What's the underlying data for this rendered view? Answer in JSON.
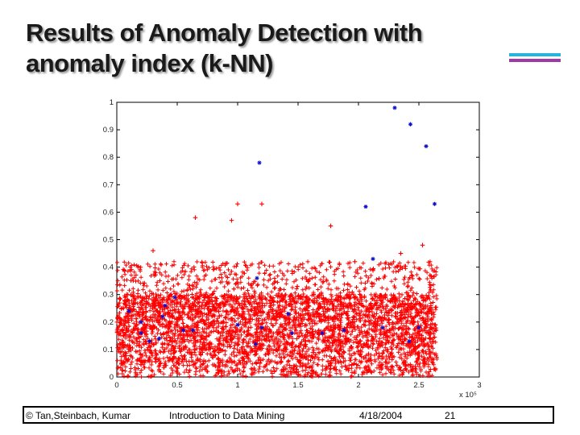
{
  "slide": {
    "title_line1": "Results of Anomaly Detection with",
    "title_line2": "anomaly index (k-NN)",
    "accent_colors": [
      "#2ab3d8",
      "#a13aa8"
    ]
  },
  "footer": {
    "copyright": "© Tan,Steinbach, Kumar",
    "course": "Introduction to Data Mining",
    "date": "4/18/2004",
    "page": "21"
  },
  "chart_data": {
    "type": "scatter",
    "xlim": [
      0,
      3
    ],
    "ylim": [
      0,
      1
    ],
    "x_ticks": [
      "0",
      "0.5",
      "1",
      "1.5",
      "2",
      "2.5",
      "3"
    ],
    "y_ticks": [
      "0",
      "0.1",
      "0.2",
      "0.3",
      "0.4",
      "0.5",
      "0.6",
      "0.7",
      "0.8",
      "0.9",
      "1"
    ],
    "x_multiplier_label": "x 10⁵",
    "grid": false,
    "series": [
      {
        "color": "#ff0000",
        "marker": "plus",
        "bulk": {
          "x_range": [
            0,
            2.65
          ],
          "dense_max_y": 0.3,
          "sparse_max_y": 0.42,
          "approx_points": 6000
        },
        "outliers": [
          [
            0.65,
            0.58
          ],
          [
            0.95,
            0.57
          ],
          [
            1.0,
            0.63
          ],
          [
            1.2,
            0.63
          ],
          [
            1.77,
            0.55
          ],
          [
            2.53,
            0.48
          ],
          [
            0.3,
            0.46
          ],
          [
            2.35,
            0.45
          ],
          [
            1.97,
            0.42
          ],
          [
            2.25,
            0.41
          ]
        ]
      },
      {
        "color": "#1010cc",
        "marker": "star",
        "points": [
          [
            2.3,
            0.98
          ],
          [
            2.43,
            0.92
          ],
          [
            2.56,
            0.84
          ],
          [
            1.18,
            0.78
          ],
          [
            2.63,
            0.63
          ],
          [
            2.06,
            0.62
          ],
          [
            2.12,
            0.43
          ],
          [
            1.16,
            0.36
          ],
          [
            0.48,
            0.29
          ],
          [
            0.4,
            0.26
          ],
          [
            0.1,
            0.24
          ],
          [
            1.42,
            0.23
          ],
          [
            0.38,
            0.22
          ],
          [
            0.2,
            0.2
          ],
          [
            1.0,
            0.19
          ],
          [
            1.2,
            0.18
          ],
          [
            0.63,
            0.17
          ],
          [
            2.2,
            0.18
          ],
          [
            0.2,
            0.16
          ],
          [
            0.55,
            0.17
          ],
          [
            1.7,
            0.16
          ],
          [
            1.45,
            0.16
          ],
          [
            0.27,
            0.13
          ],
          [
            0.35,
            0.14
          ],
          [
            1.15,
            0.12
          ],
          [
            2.42,
            0.13
          ],
          [
            2.5,
            0.18
          ],
          [
            1.88,
            0.17
          ]
        ]
      }
    ]
  }
}
